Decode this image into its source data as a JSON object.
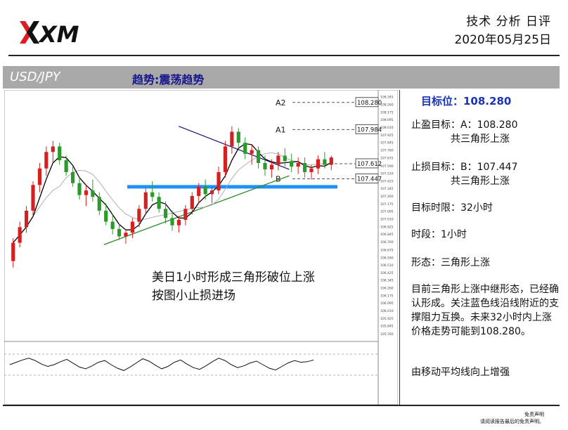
{
  "header": {
    "logo_text": "XM",
    "title": "技术 分析 日评",
    "date": "2020年05月25日"
  },
  "banner": {
    "pair": "USD/JPY",
    "trend": "趋势:震荡趋势"
  },
  "panel": {
    "target": "目标位：108.280",
    "tp_line1": "止盈目标：A：108.280",
    "tp_line2": "共三角形上涨",
    "sl_line1": "止损目标：B：107.447",
    "sl_line2": "共三角形上涨",
    "horizon": "目标时限：32小时",
    "timeframe": "时段：1小时",
    "pattern": "形态：三角形上涨",
    "comment": "目前三角形上涨中继形态，已经确认形成。关注蓝色线沿线附近的支撑阻力互换。未来32小时内上涨价格走势可能到108.280。",
    "ma_note": "由移动平均线向上增强"
  },
  "annotation": {
    "line1": "美日1小时形成三角形破位上涨",
    "line2": "按图小止损进场"
  },
  "disclaimer": {
    "line1": "免责声明",
    "line2": "请阅读报告最后的免责声明。"
  },
  "colors": {
    "bull": "#d62020",
    "bear": "#2a9a2a",
    "ma_fast": "#000000",
    "ma_slow": "#b0b0b0",
    "support": "#1e90ff",
    "upper_trend": "#1a1a80",
    "lower_trend": "#2a8a2a",
    "target_text": "#1a33b4"
  },
  "chart_data": {
    "type": "candlestick",
    "instrument": "USD/JPY",
    "timeframe": "1小时",
    "y_ticks": [
      "108.345",
      "108.260",
      "108.175",
      "108.095",
      "108.010",
      "107.925",
      "107.845",
      "107.760",
      "107.675",
      "107.590",
      "107.510",
      "107.425",
      "107.345",
      "107.260",
      "107.175",
      "107.095",
      "107.010",
      "106.925",
      "106.845",
      "106.760",
      "106.675",
      "106.590",
      "106.510",
      "106.425",
      "106.345",
      "106.260",
      "106.175",
      "106.095",
      "106.010",
      "105.925",
      "105.845",
      "105.760"
    ],
    "ylim": [
      105.72,
      108.37
    ],
    "levels": [
      {
        "label": "A2",
        "value": 108.28,
        "text": "108.280"
      },
      {
        "label": "A1",
        "value": 107.984,
        "text": "107.984"
      },
      {
        "label": "",
        "value": 107.612,
        "text": "107.612"
      },
      {
        "label": "B",
        "value": 107.447,
        "text": "107.447"
      }
    ],
    "support_level": 107.36,
    "upper_trendline": [
      [
        0.52,
        108.02
      ],
      [
        0.86,
        107.55
      ]
    ],
    "lower_trendline": [
      [
        0.29,
        106.73
      ],
      [
        0.86,
        107.48
      ]
    ],
    "candles": [
      [
        106.55,
        106.8,
        106.48,
        106.75
      ],
      [
        106.75,
        106.98,
        106.7,
        106.92
      ],
      [
        106.92,
        107.15,
        106.86,
        107.1
      ],
      [
        107.1,
        107.42,
        107.05,
        107.38
      ],
      [
        107.38,
        107.62,
        107.3,
        107.56
      ],
      [
        107.56,
        107.8,
        107.48,
        107.74
      ],
      [
        107.74,
        107.86,
        107.62,
        107.8
      ],
      [
        107.8,
        107.84,
        107.6,
        107.65
      ],
      [
        107.65,
        107.7,
        107.48,
        107.52
      ],
      [
        107.52,
        107.58,
        107.36,
        107.4
      ],
      [
        107.4,
        107.46,
        107.22,
        107.27
      ],
      [
        107.27,
        107.38,
        107.15,
        107.32
      ],
      [
        107.32,
        107.44,
        107.2,
        107.25
      ],
      [
        107.25,
        107.3,
        107.05,
        107.1
      ],
      [
        107.1,
        107.18,
        106.94,
        106.98
      ],
      [
        106.98,
        107.06,
        106.84,
        106.9
      ],
      [
        106.9,
        106.96,
        106.78,
        106.82
      ],
      [
        106.82,
        106.9,
        106.74,
        106.86
      ],
      [
        106.86,
        107.02,
        106.8,
        106.98
      ],
      [
        106.98,
        107.16,
        106.92,
        107.12
      ],
      [
        107.12,
        107.34,
        107.06,
        107.3
      ],
      [
        107.3,
        107.42,
        107.2,
        107.25
      ],
      [
        107.25,
        107.3,
        107.08,
        107.12
      ],
      [
        107.12,
        107.2,
        106.96,
        107.02
      ],
      [
        107.02,
        107.1,
        106.88,
        106.94
      ],
      [
        106.94,
        107.04,
        106.86,
        107.0
      ],
      [
        107.0,
        107.16,
        106.94,
        107.12
      ],
      [
        107.12,
        107.3,
        107.06,
        107.26
      ],
      [
        107.26,
        107.4,
        107.18,
        107.36
      ],
      [
        107.36,
        107.44,
        107.22,
        107.28
      ],
      [
        107.28,
        107.36,
        107.18,
        107.32
      ],
      [
        107.32,
        107.58,
        107.28,
        107.52
      ],
      [
        107.52,
        107.86,
        107.46,
        107.8
      ],
      [
        107.8,
        108.02,
        107.72,
        107.96
      ],
      [
        107.96,
        108.0,
        107.78,
        107.84
      ],
      [
        107.84,
        107.9,
        107.66,
        107.72
      ],
      [
        107.72,
        107.82,
        107.6,
        107.76
      ],
      [
        107.76,
        107.8,
        107.56,
        107.62
      ],
      [
        107.62,
        107.7,
        107.48,
        107.55
      ],
      [
        107.55,
        107.66,
        107.46,
        107.6
      ],
      [
        107.6,
        107.74,
        107.54,
        107.7
      ],
      [
        107.7,
        107.78,
        107.58,
        107.64
      ],
      [
        107.64,
        107.72,
        107.52,
        107.58
      ],
      [
        107.58,
        107.68,
        107.5,
        107.62
      ],
      [
        107.62,
        107.68,
        107.46,
        107.52
      ],
      [
        107.52,
        107.6,
        107.44,
        107.56
      ],
      [
        107.56,
        107.7,
        107.5,
        107.66
      ],
      [
        107.66,
        107.74,
        107.56,
        107.6
      ],
      [
        107.6,
        107.7,
        107.54,
        107.68
      ]
    ],
    "oscillator": [
      0.5,
      0.58,
      0.66,
      0.72,
      0.64,
      0.52,
      0.44,
      0.5,
      0.6,
      0.68,
      0.55,
      0.42,
      0.36,
      0.46,
      0.58,
      0.64,
      0.5,
      0.38,
      0.3,
      0.42,
      0.56,
      0.7,
      0.62,
      0.48,
      0.36,
      0.44,
      0.58,
      0.66,
      0.52,
      0.4,
      0.34,
      0.46,
      0.6,
      0.72,
      0.64,
      0.5,
      0.4,
      0.46,
      0.56,
      0.62,
      0.5,
      0.38,
      0.32,
      0.44,
      0.56,
      0.64,
      0.58,
      0.6,
      0.66
    ]
  }
}
